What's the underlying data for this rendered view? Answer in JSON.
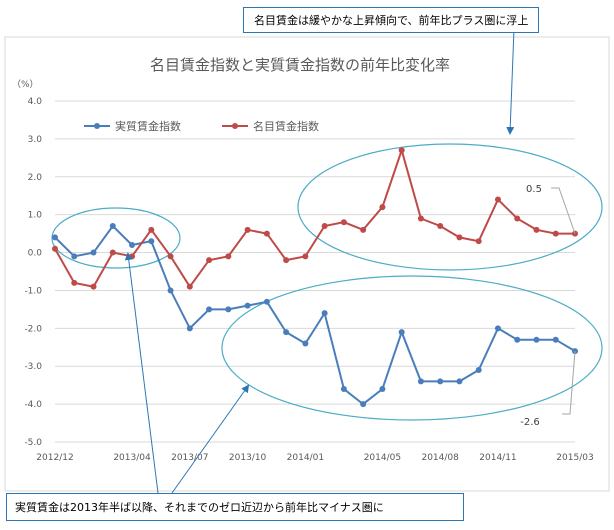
{
  "chart_data": {
    "type": "line",
    "title": "名目賃金指数と実質賃金指数の前年比変化率",
    "ylabel": "（%）",
    "ylim": [
      -5.0,
      4.0
    ],
    "yticks": [
      "4.0",
      "3.0",
      "2.0",
      "1.0",
      "0.0",
      "-1.0",
      "-2.0",
      "-3.0",
      "-4.0",
      "-5.0"
    ],
    "ytick_values": [
      4,
      3,
      2,
      1,
      0,
      -1,
      -2,
      -3,
      -4,
      -5
    ],
    "x": [
      "2012/12",
      "2013/01",
      "2013/02",
      "2013/03",
      "2013/04",
      "2013/05",
      "2013/06",
      "2013/07",
      "2013/08",
      "2013/09",
      "2013/10",
      "2013/11",
      "2013/12",
      "2014/01",
      "2014/02",
      "2014/03",
      "2014/04",
      "2014/05",
      "2014/06",
      "2014/07",
      "2014/08",
      "2014/09",
      "2014/10",
      "2014/11",
      "2014/12",
      "2015/01",
      "2015/02",
      "2015/03"
    ],
    "xtick_labels": [
      "2012/12",
      "2013/04",
      "2013/07",
      "2013/10",
      "2014/01",
      "2014/05",
      "2014/08",
      "2014/11",
      "2015/03"
    ],
    "xtick_index": [
      0,
      4,
      7,
      10,
      13,
      17,
      20,
      23,
      27
    ],
    "grid": true,
    "legend_position": "top-left",
    "series": [
      {
        "name": "実質賃金指数",
        "color": "#4a7ebb",
        "values": [
          0.4,
          -0.1,
          0.0,
          0.7,
          0.2,
          0.3,
          -1.0,
          -2.0,
          -1.5,
          -1.5,
          -1.4,
          -1.3,
          -2.1,
          -2.4,
          -1.6,
          -3.6,
          -4.0,
          -3.6,
          -2.1,
          -3.4,
          -3.4,
          -3.4,
          -3.1,
          -2.0,
          -2.3,
          -2.3,
          -2.3,
          -2.6
        ]
      },
      {
        "name": "名目賃金指数",
        "color": "#be4b48",
        "values": [
          0.1,
          -0.8,
          -0.9,
          0.0,
          -0.1,
          0.6,
          -0.1,
          -0.9,
          -0.2,
          -0.1,
          0.6,
          0.5,
          -0.2,
          -0.1,
          0.7,
          0.8,
          0.6,
          1.2,
          2.7,
          0.9,
          0.7,
          0.4,
          0.3,
          1.4,
          0.9,
          0.6,
          0.5,
          0.5
        ]
      }
    ],
    "annotations": [
      {
        "label": "0.5",
        "series": 1,
        "index": 27
      },
      {
        "label": "-2.6",
        "series": 0,
        "index": 27
      }
    ]
  },
  "callouts": {
    "top": "名目賃金は緩やかな上昇傾向で、前年比プラス圏に浮上",
    "bottom": "実質賃金は2013年半ば以降、それまでのゼロ近辺から前年比マイナス圏に"
  },
  "colors": {
    "highlight": "#4bacc6",
    "arrow": "#2e75b6",
    "grid": "#d9d9d9",
    "axis_text": "#595959"
  }
}
